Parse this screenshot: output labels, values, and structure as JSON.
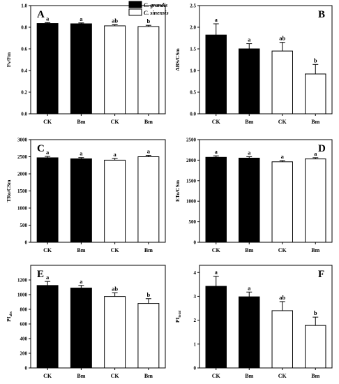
{
  "legend": [
    {
      "name": "C. grandis",
      "fill": "#000000"
    },
    {
      "name": "C. sinensis",
      "fill": "#ffffff"
    }
  ],
  "chart_data": [
    {
      "panel": "A",
      "type": "bar",
      "ylabel": "Fv/Fm",
      "categories": [
        "CK",
        "Bm",
        "CK",
        "Bm"
      ],
      "values": [
        0.835,
        0.832,
        0.813,
        0.806
      ],
      "errors": [
        0.008,
        0.008,
        0.01,
        0.012
      ],
      "letters": [
        "a",
        "a",
        "ab",
        "b"
      ],
      "ylim": [
        0,
        1.0
      ],
      "yticks": [
        "0.0",
        "0.2",
        "0.4",
        "0.6",
        "0.8",
        "1.0"
      ],
      "fills": [
        "#000000",
        "#000000",
        "#ffffff",
        "#ffffff"
      ]
    },
    {
      "panel": "B",
      "type": "bar",
      "ylabel": "ABS/CSm",
      "categories": [
        "CK",
        "Bm",
        "CK",
        "Bm"
      ],
      "values": [
        1.82,
        1.5,
        1.45,
        0.92
      ],
      "errors": [
        0.26,
        0.12,
        0.2,
        0.22
      ],
      "letters": [
        "a",
        "a",
        "ab",
        "b"
      ],
      "ylim": [
        0,
        2.5
      ],
      "yticks": [
        "0.0",
        "0.5",
        "1.0",
        "1.5",
        "2.0",
        "2.5"
      ],
      "fills": [
        "#000000",
        "#000000",
        "#ffffff",
        "#ffffff"
      ]
    },
    {
      "panel": "C",
      "type": "bar",
      "ylabel": "TRo/CSm",
      "categories": [
        "CK",
        "Bm",
        "CK",
        "Bm"
      ],
      "values": [
        2470,
        2440,
        2400,
        2500
      ],
      "errors": [
        40,
        35,
        50,
        40
      ],
      "letters": [
        "a",
        "a",
        "a",
        "a"
      ],
      "ylim": [
        0,
        3000
      ],
      "yticks": [
        "0",
        "500",
        "1000",
        "1500",
        "2000",
        "2500",
        "3000"
      ],
      "fills": [
        "#000000",
        "#000000",
        "#ffffff",
        "#ffffff"
      ]
    },
    {
      "panel": "D",
      "type": "bar",
      "ylabel": "ETo/CSm",
      "categories": [
        "CK",
        "Bm",
        "CK",
        "Bm"
      ],
      "values": [
        2070,
        2050,
        1960,
        2030
      ],
      "errors": [
        35,
        35,
        30,
        30
      ],
      "letters": [
        "a",
        "a",
        "a",
        "a"
      ],
      "ylim": [
        0,
        2500
      ],
      "yticks": [
        "0",
        "500",
        "1000",
        "1500",
        "2000",
        "2500"
      ],
      "fills": [
        "#000000",
        "#000000",
        "#ffffff",
        "#ffffff"
      ]
    },
    {
      "panel": "E",
      "type": "bar",
      "ylabel": "PI",
      "ylabel_sub": "abs",
      "categories": [
        "CK",
        "Bm",
        "CK",
        "Bm"
      ],
      "values": [
        1125,
        1090,
        975,
        880
      ],
      "errors": [
        55,
        35,
        50,
        65
      ],
      "letters": [
        "a",
        "a",
        "ab",
        "b"
      ],
      "ylim": [
        0,
        1400
      ],
      "yticks": [
        "0",
        "200",
        "400",
        "600",
        "800",
        "1000",
        "1200"
      ],
      "fills": [
        "#000000",
        "#000000",
        "#ffffff",
        "#ffffff"
      ]
    },
    {
      "panel": "F",
      "type": "bar",
      "ylabel": "PI",
      "ylabel_sub": "total",
      "categories": [
        "CK",
        "Bm",
        "CK",
        "Bm"
      ],
      "values": [
        3.42,
        2.98,
        2.4,
        1.78
      ],
      "errors": [
        0.42,
        0.2,
        0.38,
        0.35
      ],
      "letters": [
        "a",
        "a",
        "ab",
        "b"
      ],
      "ylim": [
        0,
        4.3
      ],
      "yticks": [
        "0",
        "1",
        "2",
        "3",
        "4"
      ],
      "fills": [
        "#000000",
        "#000000",
        "#ffffff",
        "#ffffff"
      ]
    }
  ]
}
